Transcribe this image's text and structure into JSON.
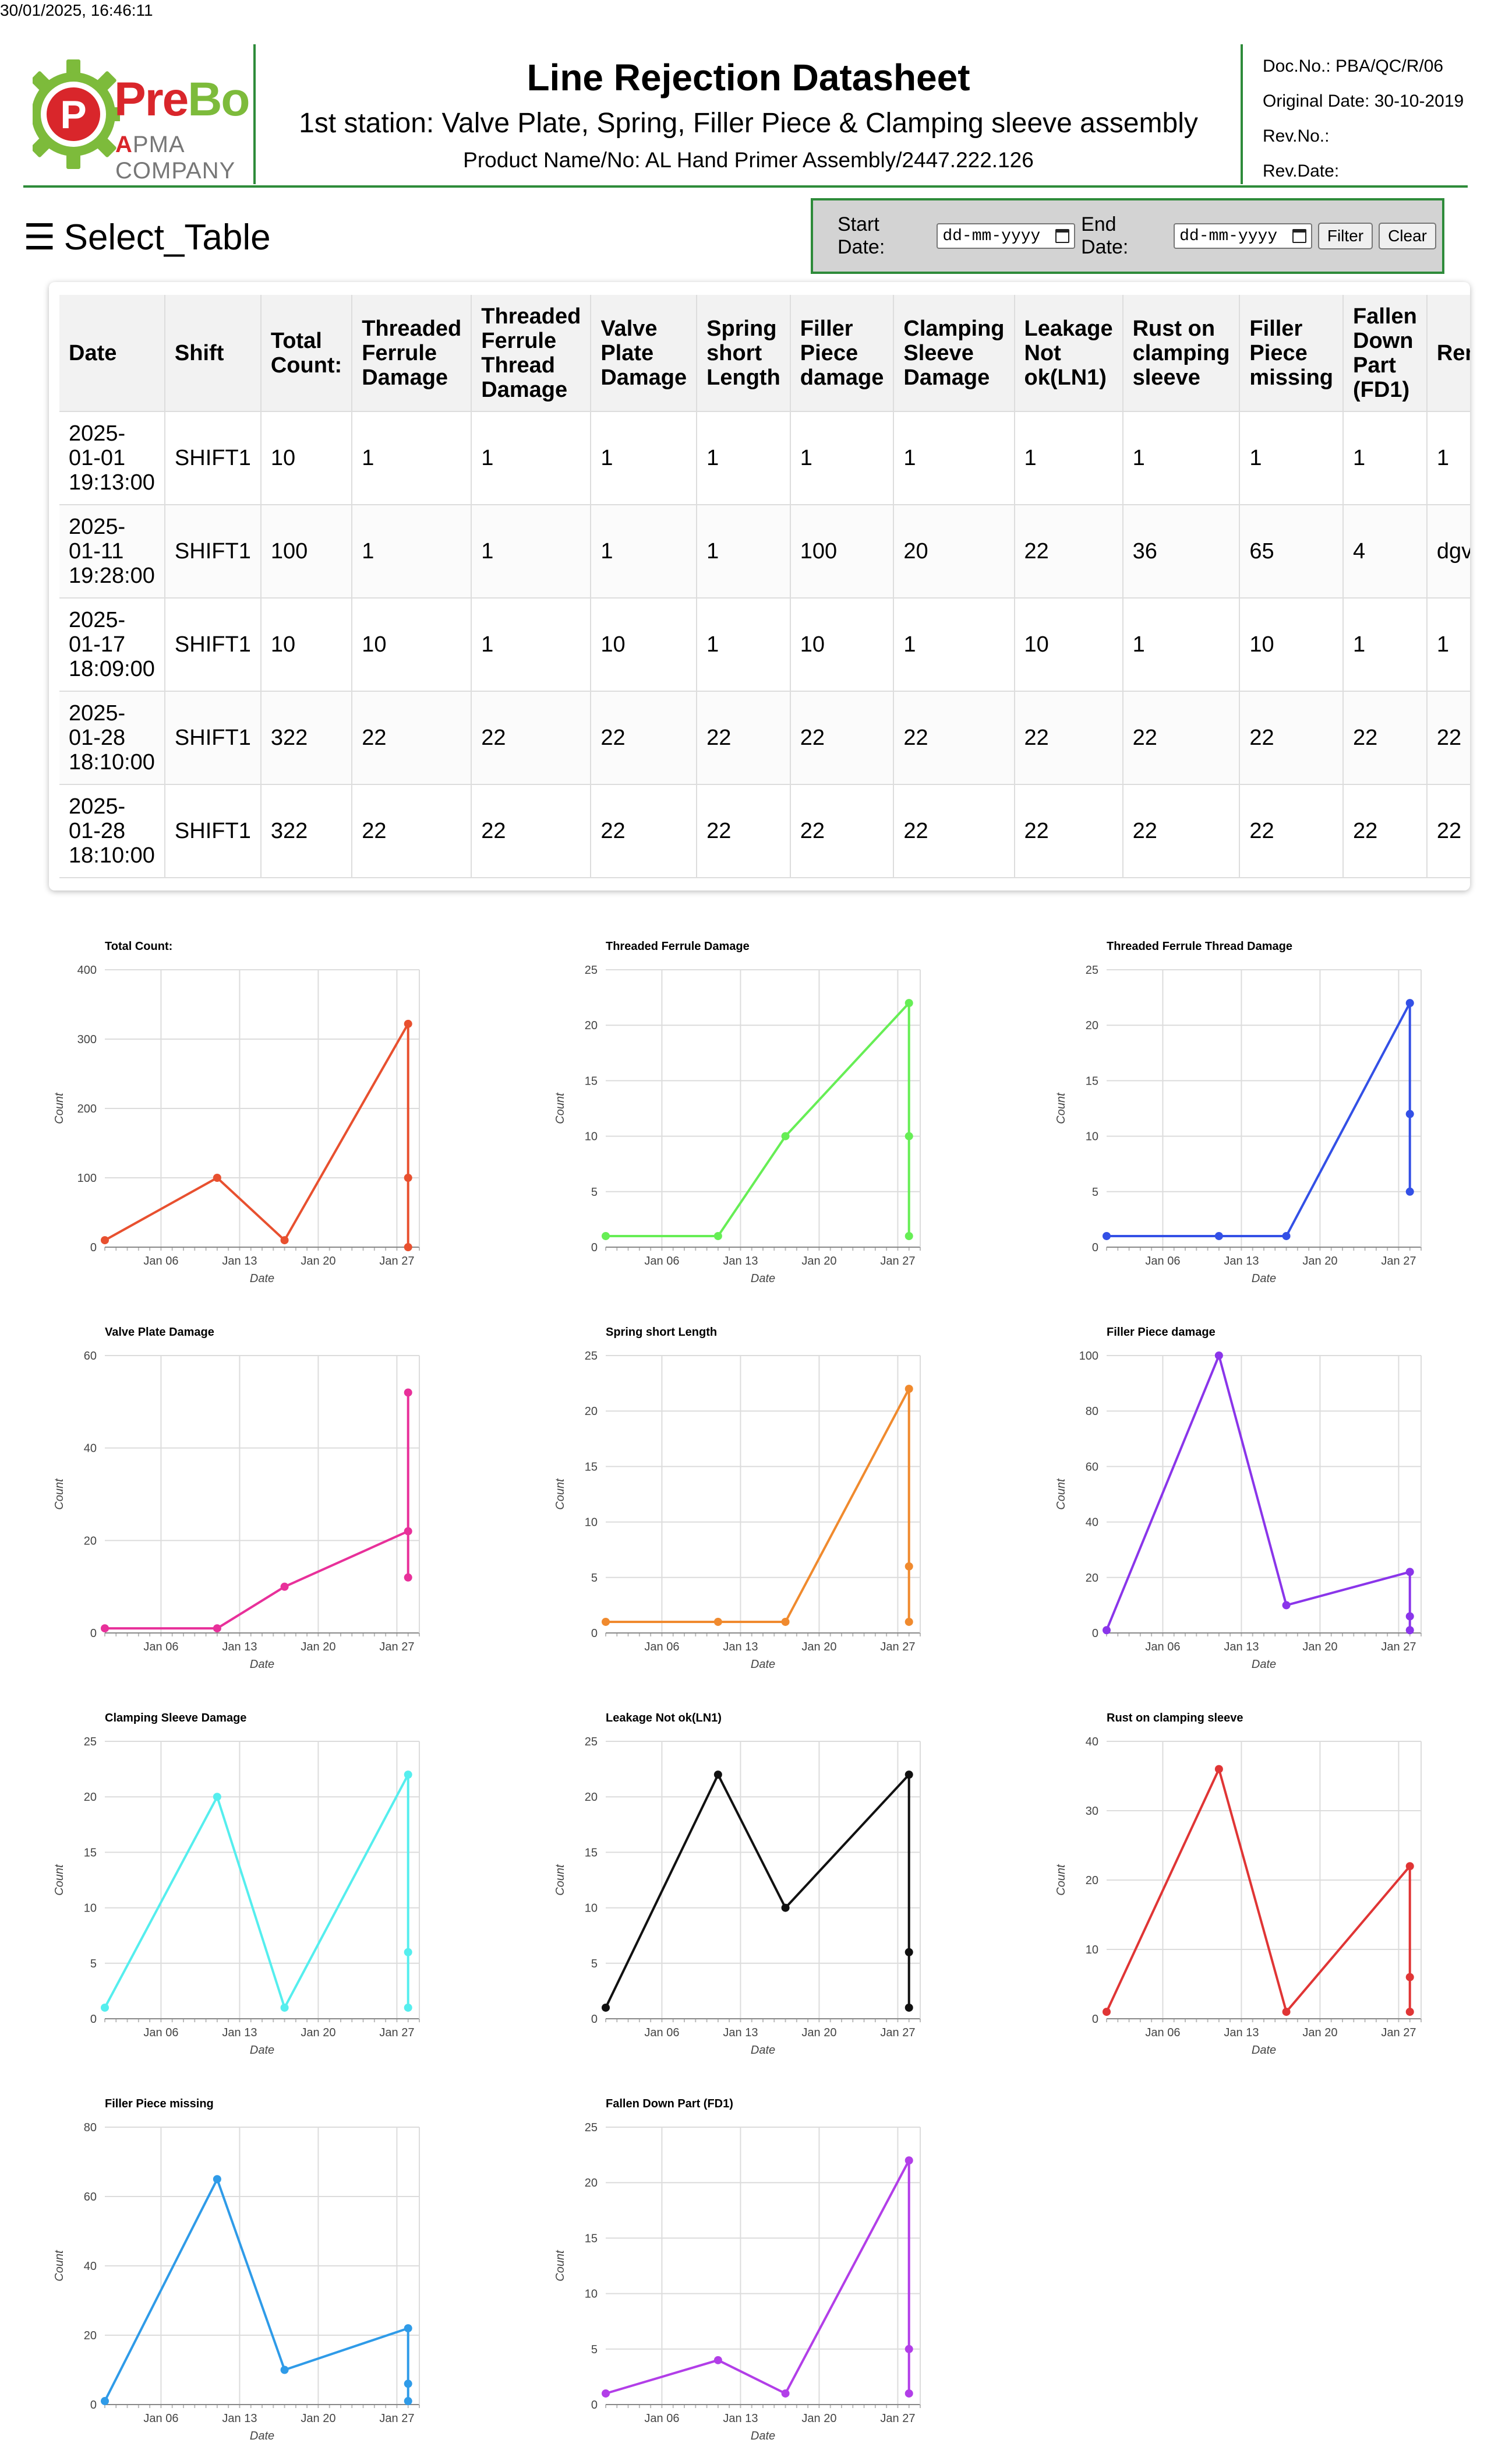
{
  "print_timestamp": "30/01/2025, 16:46:11",
  "header": {
    "logo_name_part1": "Pre",
    "logo_name_part2": "Bo",
    "logo_sub_mark": "A",
    "logo_sub_text": "PMA COMPANY",
    "logo_icon_letter": "P",
    "title": "Line Rejection Datasheet",
    "subtitle": "1st station: Valve Plate, Spring, Filler Piece & Clamping sleeve assembly",
    "product": "Product Name/No: AL Hand Primer Assembly/2447.222.126",
    "doc_no": "Doc.No.: PBA/QC/R/06",
    "original_date": "Original Date: 30-10-2019",
    "rev_no": "Rev.No.:",
    "rev_date": "Rev.Date:"
  },
  "colors": {
    "brand_red": "#d9262b",
    "brand_green": "#2e8b3a",
    "brand_lightgreen": "#7dbb3b"
  },
  "select_table": {
    "icon": "hamburger-icon",
    "label": "Select_Table"
  },
  "filter": {
    "start_label": "Start Date:",
    "end_label": "End Date:",
    "start_placeholder": "dd-mm-yyyy",
    "end_placeholder": "dd-mm-yyyy",
    "filter_button": "Filter",
    "clear_button": "Clear"
  },
  "table": {
    "headers": [
      "Date",
      "Shift",
      "Total Count:",
      "Threaded Ferrule Damage",
      "Threaded Ferrule Thread Damage",
      "Valve Plate Damage",
      "Spring short Length",
      "Filler Piece damage",
      "Clamping Sleeve Damage",
      "Leakage Not ok(LN1)",
      "Rust on clamping sleeve",
      "Filler Piece missing",
      "Fallen Down Part (FD1)",
      "Remark"
    ],
    "rows": [
      [
        "2025-01-01 19:13:00",
        "SHIFT1",
        "10",
        "1",
        "1",
        "1",
        "1",
        "1",
        "1",
        "1",
        "1",
        "1",
        "1",
        "1"
      ],
      [
        "2025-01-11 19:28:00",
        "SHIFT1",
        "100",
        "1",
        "1",
        "1",
        "1",
        "100",
        "20",
        "22",
        "36",
        "65",
        "4",
        "dgv"
      ],
      [
        "2025-01-17 18:09:00",
        "SHIFT1",
        "10",
        "10",
        "1",
        "10",
        "1",
        "10",
        "1",
        "10",
        "1",
        "10",
        "1",
        "1"
      ],
      [
        "2025-01-28 18:10:00",
        "SHIFT1",
        "322",
        "22",
        "22",
        "22",
        "22",
        "22",
        "22",
        "22",
        "22",
        "22",
        "22",
        "22"
      ],
      [
        "2025-01-28 18:10:00",
        "SHIFT1",
        "322",
        "22",
        "22",
        "22",
        "22",
        "22",
        "22",
        "22",
        "22",
        "22",
        "22",
        "22"
      ]
    ]
  },
  "chart_data": [
    {
      "type": "line",
      "title": "Total Count:",
      "xlabel": "Date",
      "ylabel": "Count",
      "color": "#e8502f",
      "ylim": [
        0,
        400
      ],
      "yticks": [
        0,
        100,
        200,
        300,
        400
      ],
      "xlim": [
        "2025-01-01",
        "2025-01-29"
      ],
      "xticks": [
        "Jan 06",
        "Jan 13",
        "Jan 20",
        "Jan 27"
      ],
      "grid": true,
      "x": [
        "2025-01-01",
        "2025-01-11",
        "2025-01-17",
        "2025-01-28",
        "2025-01-28",
        "2025-01-28"
      ],
      "y": [
        10,
        100,
        10,
        322,
        100,
        0
      ]
    },
    {
      "type": "line",
      "title": "Threaded Ferrule Damage",
      "xlabel": "Date",
      "ylabel": "Count",
      "color": "#66ee55",
      "ylim": [
        0,
        25
      ],
      "yticks": [
        0,
        5,
        10,
        15,
        20,
        25
      ],
      "xlim": [
        "2025-01-01",
        "2025-01-29"
      ],
      "xticks": [
        "Jan 06",
        "Jan 13",
        "Jan 20",
        "Jan 27"
      ],
      "grid": true,
      "x": [
        "2025-01-01",
        "2025-01-11",
        "2025-01-17",
        "2025-01-28",
        "2025-01-28",
        "2025-01-28"
      ],
      "y": [
        1,
        1,
        10,
        22,
        10,
        1
      ]
    },
    {
      "type": "line",
      "title": "Threaded Ferrule Thread Damage",
      "xlabel": "Date",
      "ylabel": "Count",
      "color": "#3350e6",
      "ylim": [
        0,
        25
      ],
      "yticks": [
        0,
        5,
        10,
        15,
        20,
        25
      ],
      "xlim": [
        "2025-01-01",
        "2025-01-29"
      ],
      "xticks": [
        "Jan 06",
        "Jan 13",
        "Jan 20",
        "Jan 27"
      ],
      "grid": true,
      "x": [
        "2025-01-01",
        "2025-01-11",
        "2025-01-17",
        "2025-01-28",
        "2025-01-28",
        "2025-01-28"
      ],
      "y": [
        1,
        1,
        1,
        22,
        12,
        5
      ]
    },
    {
      "type": "line",
      "title": "Valve Plate Damage",
      "xlabel": "Date",
      "ylabel": "Count",
      "color": "#e8309a",
      "ylim": [
        0,
        60
      ],
      "yticks": [
        0,
        20,
        40,
        60
      ],
      "xlim": [
        "2025-01-01",
        "2025-01-29"
      ],
      "xticks": [
        "Jan 06",
        "Jan 13",
        "Jan 20",
        "Jan 27"
      ],
      "grid": true,
      "x": [
        "2025-01-01",
        "2025-01-11",
        "2025-01-17",
        "2025-01-28",
        "2025-01-28",
        "2025-01-28"
      ],
      "y": [
        1,
        1,
        10,
        22,
        52,
        12
      ]
    },
    {
      "type": "line",
      "title": "Spring short Length",
      "xlabel": "Date",
      "ylabel": "Count",
      "color": "#f08a2e",
      "ylim": [
        0,
        25
      ],
      "yticks": [
        0,
        5,
        10,
        15,
        20,
        25
      ],
      "xlim": [
        "2025-01-01",
        "2025-01-29"
      ],
      "xticks": [
        "Jan 06",
        "Jan 13",
        "Jan 20",
        "Jan 27"
      ],
      "grid": true,
      "x": [
        "2025-01-01",
        "2025-01-11",
        "2025-01-17",
        "2025-01-28",
        "2025-01-28",
        "2025-01-28"
      ],
      "y": [
        1,
        1,
        1,
        22,
        6,
        1
      ]
    },
    {
      "type": "line",
      "title": "Filler Piece damage",
      "xlabel": "Date",
      "ylabel": "Count",
      "color": "#8a35ea",
      "ylim": [
        0,
        100
      ],
      "yticks": [
        0,
        20,
        40,
        60,
        80,
        100
      ],
      "xlim": [
        "2025-01-01",
        "2025-01-29"
      ],
      "xticks": [
        "Jan 06",
        "Jan 13",
        "Jan 20",
        "Jan 27"
      ],
      "grid": true,
      "x": [
        "2025-01-01",
        "2025-01-11",
        "2025-01-17",
        "2025-01-28",
        "2025-01-28",
        "2025-01-28"
      ],
      "y": [
        1,
        100,
        10,
        22,
        6,
        1
      ]
    },
    {
      "type": "line",
      "title": "Clamping Sleeve Damage",
      "xlabel": "Date",
      "ylabel": "Count",
      "color": "#55eeee",
      "ylim": [
        0,
        25
      ],
      "yticks": [
        0,
        5,
        10,
        15,
        20,
        25
      ],
      "xlim": [
        "2025-01-01",
        "2025-01-29"
      ],
      "xticks": [
        "Jan 06",
        "Jan 13",
        "Jan 20",
        "Jan 27"
      ],
      "grid": true,
      "x": [
        "2025-01-01",
        "2025-01-11",
        "2025-01-17",
        "2025-01-28",
        "2025-01-28",
        "2025-01-28"
      ],
      "y": [
        1,
        20,
        1,
        22,
        6,
        1
      ]
    },
    {
      "type": "line",
      "title": "Leakage Not ok(LN1)",
      "xlabel": "Date",
      "ylabel": "Count",
      "color": "#111111",
      "ylim": [
        0,
        25
      ],
      "yticks": [
        0,
        5,
        10,
        15,
        20,
        25
      ],
      "xlim": [
        "2025-01-01",
        "2025-01-29"
      ],
      "xticks": [
        "Jan 06",
        "Jan 13",
        "Jan 20",
        "Jan 27"
      ],
      "grid": true,
      "x": [
        "2025-01-01",
        "2025-01-11",
        "2025-01-17",
        "2025-01-28",
        "2025-01-28",
        "2025-01-28"
      ],
      "y": [
        1,
        22,
        10,
        22,
        6,
        1
      ]
    },
    {
      "type": "line",
      "title": "Rust on clamping sleeve",
      "xlabel": "Date",
      "ylabel": "Count",
      "color": "#e03535",
      "ylim": [
        0,
        40
      ],
      "yticks": [
        0,
        10,
        20,
        30,
        40
      ],
      "xlim": [
        "2025-01-01",
        "2025-01-29"
      ],
      "xticks": [
        "Jan 06",
        "Jan 13",
        "Jan 20",
        "Jan 27"
      ],
      "grid": true,
      "x": [
        "2025-01-01",
        "2025-01-11",
        "2025-01-17",
        "2025-01-28",
        "2025-01-28",
        "2025-01-28"
      ],
      "y": [
        1,
        36,
        1,
        22,
        6,
        1
      ]
    },
    {
      "type": "line",
      "title": "Filler Piece missing",
      "xlabel": "Date",
      "ylabel": "Count",
      "color": "#2f9be8",
      "ylim": [
        0,
        80
      ],
      "yticks": [
        0,
        20,
        40,
        60,
        80
      ],
      "xlim": [
        "2025-01-01",
        "2025-01-29"
      ],
      "xticks": [
        "Jan 06",
        "Jan 13",
        "Jan 20",
        "Jan 27"
      ],
      "grid": true,
      "x": [
        "2025-01-01",
        "2025-01-11",
        "2025-01-17",
        "2025-01-28",
        "2025-01-28",
        "2025-01-28"
      ],
      "y": [
        1,
        65,
        10,
        22,
        6,
        1
      ]
    },
    {
      "type": "line",
      "title": "Fallen Down Part (FD1)",
      "xlabel": "Date",
      "ylabel": "Count",
      "color": "#b23ee8",
      "ylim": [
        0,
        25
      ],
      "yticks": [
        0,
        5,
        10,
        15,
        20,
        25
      ],
      "xlim": [
        "2025-01-01",
        "2025-01-29"
      ],
      "xticks": [
        "Jan 06",
        "Jan 13",
        "Jan 20",
        "Jan 27"
      ],
      "grid": true,
      "x": [
        "2025-01-01",
        "2025-01-11",
        "2025-01-17",
        "2025-01-28",
        "2025-01-28",
        "2025-01-28"
      ],
      "y": [
        1,
        4,
        1,
        22,
        5,
        1
      ]
    }
  ]
}
